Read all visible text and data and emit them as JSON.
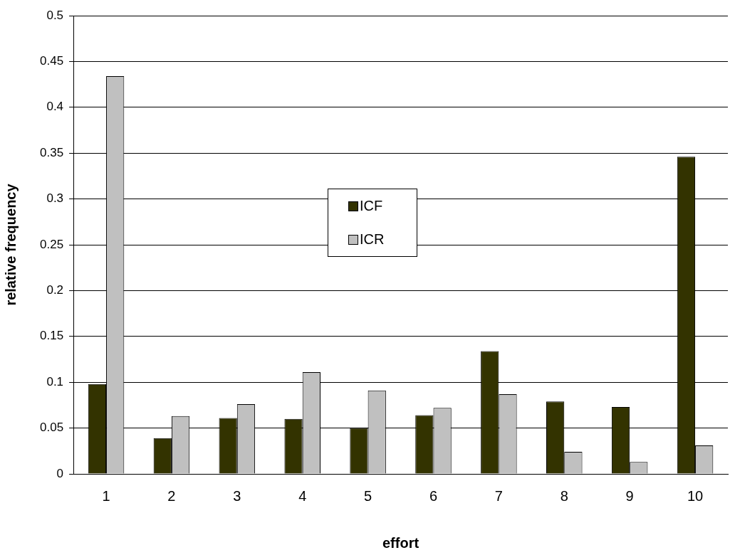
{
  "chart_data": {
    "type": "bar",
    "xlabel": "effort",
    "ylabel": "relative frequency",
    "categories": [
      "1",
      "2",
      "3",
      "4",
      "5",
      "6",
      "7",
      "8",
      "9",
      "10"
    ],
    "series": [
      {
        "name": "ICF",
        "color": "#333300",
        "values": [
          0.098,
          0.039,
          0.061,
          0.06,
          0.05,
          0.064,
          0.134,
          0.079,
          0.073,
          0.346
        ]
      },
      {
        "name": "ICR",
        "color": "#c0c0c0",
        "values": [
          0.434,
          0.063,
          0.076,
          0.111,
          0.091,
          0.072,
          0.087,
          0.024,
          0.013,
          0.031
        ]
      }
    ],
    "ylim": [
      0,
      0.5
    ],
    "yticks": [
      0,
      0.05,
      0.1,
      0.15,
      0.2,
      0.25,
      0.3,
      0.35,
      0.4,
      0.45,
      0.5
    ],
    "grid": "y",
    "legend": "center"
  }
}
